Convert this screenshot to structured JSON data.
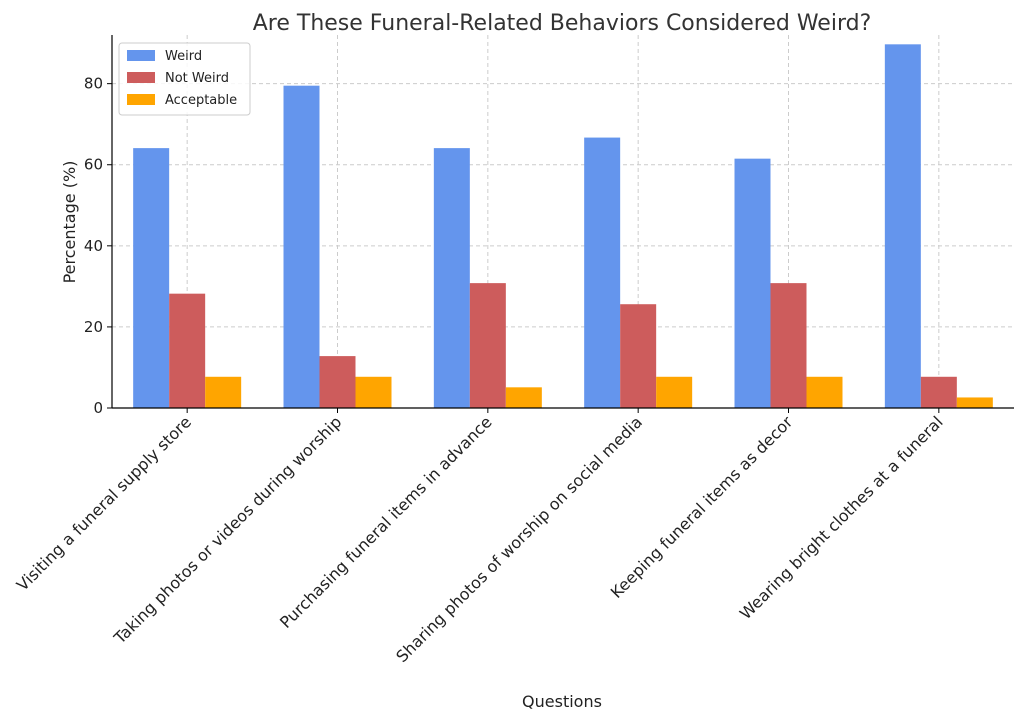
{
  "chart_data": {
    "type": "bar",
    "title": "Are These Funeral-Related Behaviors Considered Weird?",
    "xlabel": "Questions",
    "ylabel": "Percentage (%)",
    "ylim": [
      0,
      92
    ],
    "yticks": [
      0,
      20,
      40,
      60,
      80
    ],
    "grid": true,
    "legend_position": "top-left",
    "categories": [
      "Visiting a funeral supply store",
      "Taking photos or videos during worship",
      "Purchasing funeral items in advance",
      "Sharing photos of worship on social media",
      "Keeping funeral items as decor",
      "Wearing bright clothes at a funeral"
    ],
    "series": [
      {
        "name": "Weird",
        "color": "#6495ED",
        "values": [
          64.1,
          79.5,
          64.1,
          66.7,
          61.5,
          89.7
        ]
      },
      {
        "name": "Not Weird",
        "color": "#CD5C5C",
        "values": [
          28.2,
          12.8,
          30.8,
          25.6,
          30.8,
          7.7
        ]
      },
      {
        "name": "Acceptable",
        "color": "#FFA500",
        "values": [
          7.7,
          7.7,
          5.1,
          7.7,
          7.7,
          2.6
        ]
      }
    ]
  }
}
